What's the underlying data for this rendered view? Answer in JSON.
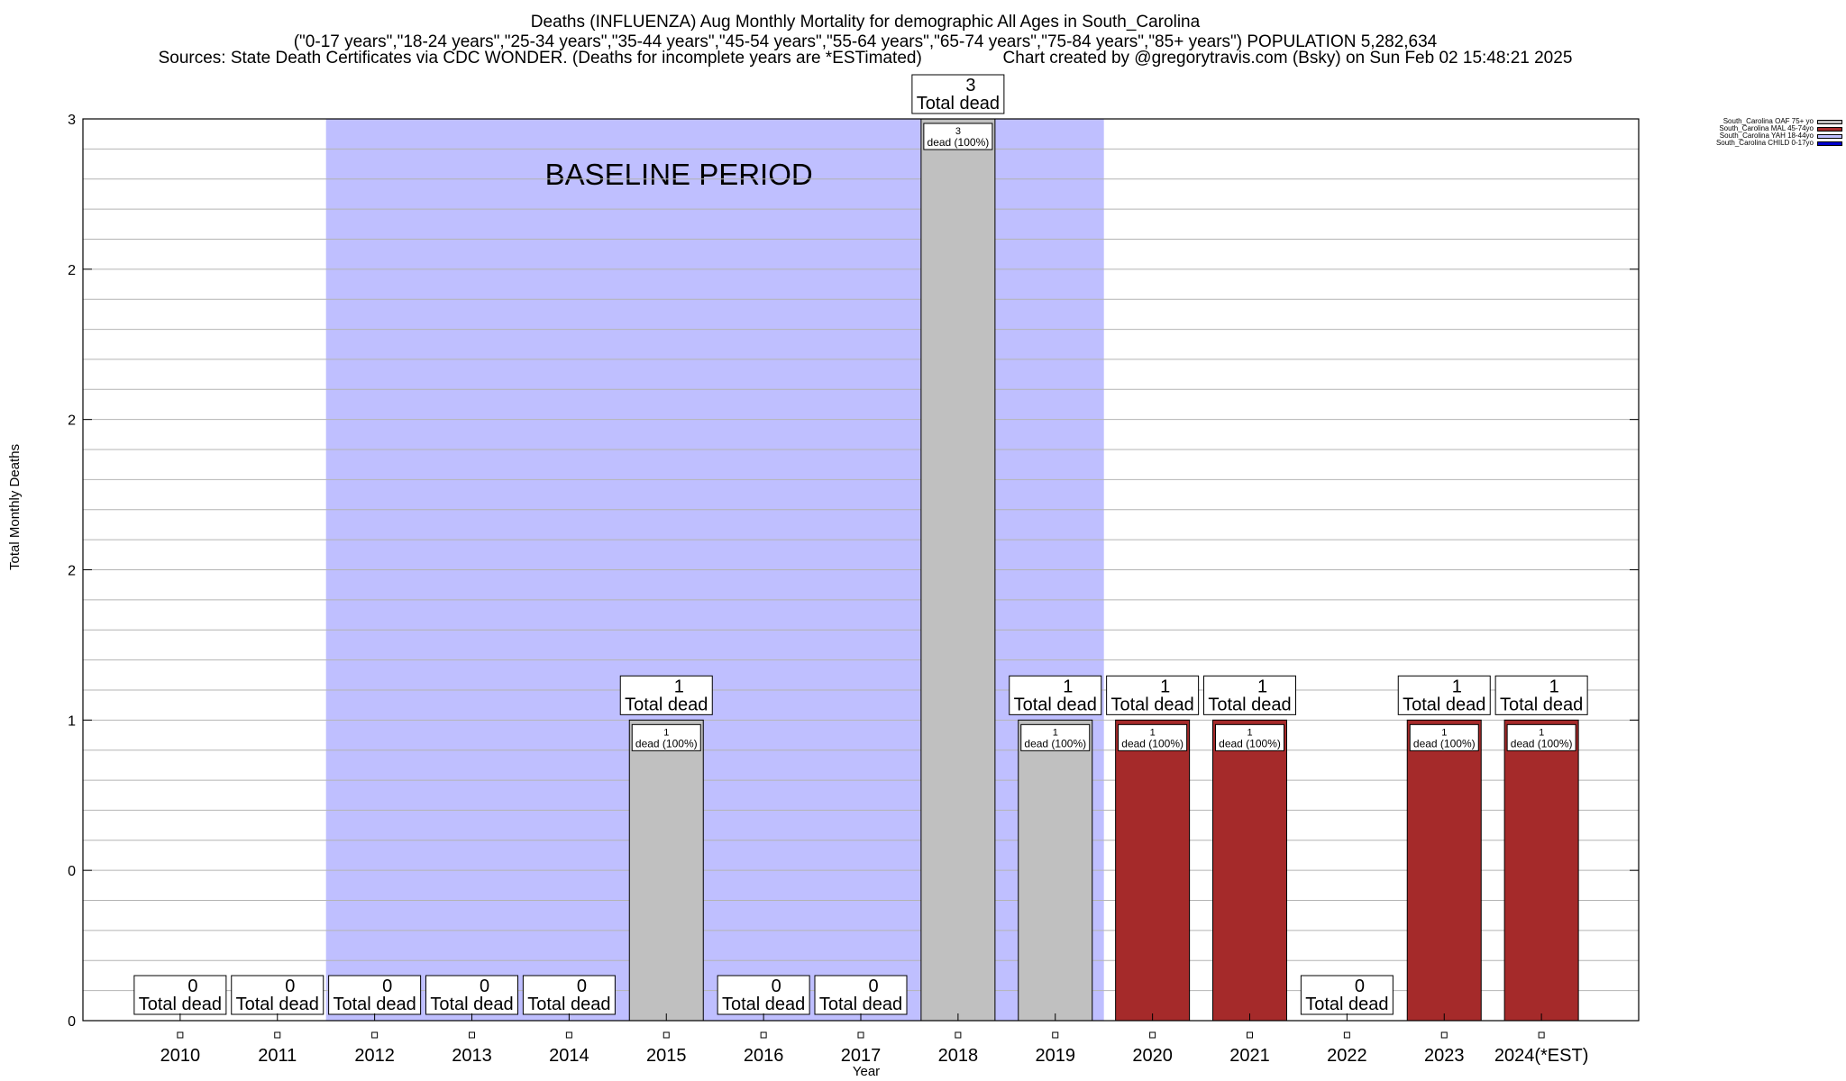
{
  "header": {
    "title_line1": "Deaths (INFLUENZA) Aug Monthly Mortality for demographic All Ages in South_Carolina",
    "title_line2": "(\"0-17 years\",\"18-24 years\",\"25-34 years\",\"35-44 years\",\"45-54 years\",\"55-64 years\",\"65-74 years\",\"75-84 years\",\"85+ years\") POPULATION 5,282,634",
    "sources": "Sources: State Death Certificates via CDC WONDER. (Deaths for incomplete years are *ESTimated)",
    "credit": "Chart created by @gregorytravis.com (Bsky) on Sun Feb 02 15:48:21 2025"
  },
  "chart_data": {
    "type": "bar",
    "title": "Deaths (INFLUENZA) Aug Monthly Mortality for demographic All Ages in South_Carolina",
    "xlabel": "Year",
    "ylabel": "Total Monthly Deaths",
    "ylim": [
      0,
      3
    ],
    "ytick_labels": [
      "0",
      "0",
      "1",
      "2",
      "2",
      "2",
      "3"
    ],
    "ytick_values": [
      0,
      0.5,
      1,
      1.5,
      2,
      2.5,
      3
    ],
    "grid": true,
    "legend_position": "top-right",
    "baseline_label": "BASELINE PERIOD",
    "baseline_range": [
      "2012",
      "2019"
    ],
    "categories": [
      "2010",
      "2011",
      "2012",
      "2013",
      "2014",
      "2015",
      "2016",
      "2017",
      "2018",
      "2019",
      "2020",
      "2021",
      "2022",
      "2023",
      "2024(*EST)"
    ],
    "series": [
      {
        "name": "South_Carolina OAF 75+ yo",
        "color": "#c0c0c0",
        "values": [
          0,
          0,
          0,
          0,
          0,
          1,
          0,
          0,
          3,
          1,
          0,
          0,
          0,
          0,
          0
        ]
      },
      {
        "name": "South_Carolina MAL 45-74yo",
        "color": "#a52a2a",
        "values": [
          0,
          0,
          0,
          0,
          0,
          0,
          0,
          0,
          0,
          0,
          1,
          1,
          0,
          1,
          1
        ]
      },
      {
        "name": "South_Carolina YAH 18-44yo",
        "color": "#c0c0ff",
        "values": [
          0,
          0,
          0,
          0,
          0,
          0,
          0,
          0,
          0,
          0,
          0,
          0,
          0,
          0,
          0
        ]
      },
      {
        "name": "South_Carolina CHILD 0-17yo",
        "color": "#0000cd",
        "values": [
          0,
          0,
          0,
          0,
          0,
          0,
          0,
          0,
          0,
          0,
          0,
          0,
          0,
          0,
          0
        ]
      }
    ],
    "totals": [
      0,
      0,
      0,
      0,
      0,
      1,
      0,
      0,
      3,
      1,
      1,
      1,
      0,
      1,
      1
    ],
    "total_label_suffix": "Total dead",
    "segment_label_suffix": "dead (100%)"
  },
  "colors": {
    "baseline_fill": "#bfbfff",
    "grid": "#b4b4b4"
  }
}
